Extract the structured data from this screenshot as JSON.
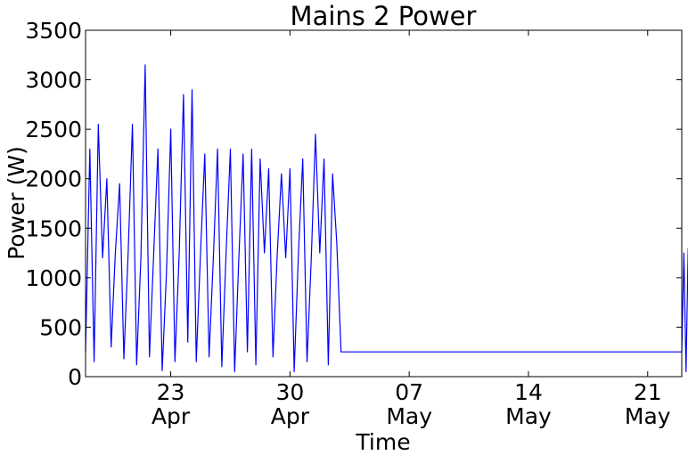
{
  "chart_data": {
    "type": "line",
    "title": "Mains 2 Power",
    "xlabel": "Time",
    "ylabel": "Power (W)",
    "ylim": [
      0,
      3500
    ],
    "xlim": [
      "2011-04-18",
      "2011-05-23"
    ],
    "yticks": [
      0,
      500,
      1000,
      1500,
      2000,
      2500,
      3000,
      3500
    ],
    "yticklabels": [
      "0",
      "500",
      "1000",
      "1500",
      "2000",
      "2500",
      "3000",
      "3500"
    ],
    "xticks": [
      {
        "date": "2011-04-23",
        "day": "23",
        "month": "Apr"
      },
      {
        "date": "2011-04-30",
        "day": "30",
        "month": "Apr"
      },
      {
        "date": "2011-05-07",
        "day": "07",
        "month": "May"
      },
      {
        "date": "2011-05-14",
        "day": "14",
        "month": "May"
      },
      {
        "date": "2011-05-21",
        "day": "21",
        "month": "May"
      }
    ],
    "grid": false,
    "series": [
      {
        "color": "#0000ff",
        "x": [
          "2011-04-18T00:00",
          "2011-04-18T06:00",
          "2011-04-18T12:00",
          "2011-04-18T18:00",
          "2011-04-19T00:00",
          "2011-04-19T06:00",
          "2011-04-19T12:00",
          "2011-04-19T18:00",
          "2011-04-20T00:00",
          "2011-04-20T06:00",
          "2011-04-20T12:00",
          "2011-04-20T18:00",
          "2011-04-21T00:00",
          "2011-04-21T06:00",
          "2011-04-21T12:00",
          "2011-04-21T18:00",
          "2011-04-22T00:00",
          "2011-04-22T06:00",
          "2011-04-22T12:00",
          "2011-04-22T18:00",
          "2011-04-23T00:00",
          "2011-04-23T06:00",
          "2011-04-23T12:00",
          "2011-04-23T18:00",
          "2011-04-24T00:00",
          "2011-04-24T06:00",
          "2011-04-24T12:00",
          "2011-04-24T18:00",
          "2011-04-25T00:00",
          "2011-04-25T06:00",
          "2011-04-25T12:00",
          "2011-04-25T18:00",
          "2011-04-26T00:00",
          "2011-04-26T06:00",
          "2011-04-26T12:00",
          "2011-04-26T18:00",
          "2011-04-27T00:00",
          "2011-04-27T06:00",
          "2011-04-27T12:00",
          "2011-04-27T18:00",
          "2011-04-28T00:00",
          "2011-04-28T06:00",
          "2011-04-28T12:00",
          "2011-04-28T18:00",
          "2011-04-29T00:00",
          "2011-04-29T06:00",
          "2011-04-29T12:00",
          "2011-04-29T18:00",
          "2011-04-30T00:00",
          "2011-04-30T06:00",
          "2011-04-30T12:00",
          "2011-04-30T18:00",
          "2011-05-01T00:00",
          "2011-05-01T06:00",
          "2011-05-01T12:00",
          "2011-05-01T18:00",
          "2011-05-02T00:00",
          "2011-05-02T06:00",
          "2011-05-02T12:00",
          "2011-05-02T18:00",
          "2011-05-03T00:00",
          "2011-05-23T00:00",
          "2011-05-23T03:00",
          "2011-05-23T06:00",
          "2011-05-23T09:00"
        ],
        "y": [
          250,
          2300,
          150,
          2550,
          1200,
          2000,
          300,
          1250,
          1950,
          180,
          1250,
          2550,
          120,
          1200,
          3150,
          200,
          1250,
          2300,
          60,
          1050,
          2500,
          150,
          1250,
          2850,
          350,
          2900,
          150,
          1250,
          2250,
          200,
          1200,
          2300,
          100,
          1250,
          2300,
          50,
          1200,
          2250,
          250,
          2300,
          120,
          2200,
          1250,
          2100,
          200,
          1220,
          2050,
          1200,
          2100,
          50,
          1250,
          2200,
          150,
          1200,
          2450,
          1250,
          2200,
          120,
          2050,
          1350,
          250,
          250,
          1250,
          50,
          1300
        ]
      }
    ]
  }
}
